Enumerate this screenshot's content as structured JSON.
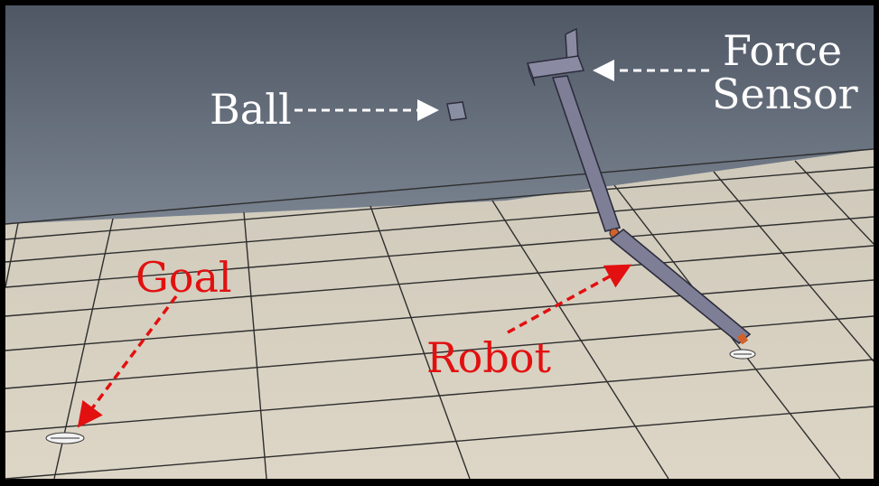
{
  "labels": {
    "ball": "Ball",
    "force_line1": "Force",
    "force_line2": "Sensor",
    "goal": "Goal",
    "robot": "Robot"
  },
  "colors": {
    "sky_top": "#4f5765",
    "sky_bottom": "#7b8491",
    "floor": "#d9d2c2",
    "floor_dark": "#c6bfae",
    "grid": "#2e2e2e",
    "robot_body": "#7e7f96",
    "robot_edge": "#2c2c3c",
    "joint": "#d2622a",
    "white_label": "#ffffff",
    "red_label": "#e21010"
  }
}
